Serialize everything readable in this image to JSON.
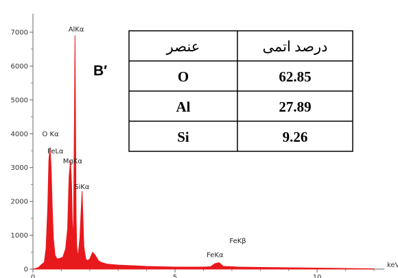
{
  "panel_label": "B′",
  "chart_data": {
    "type": "line",
    "xlabel": "keV",
    "ylabel": "",
    "xlim": [
      0,
      12
    ],
    "ylim": [
      0,
      7500
    ],
    "y_ticks": [
      0,
      1000,
      2000,
      3000,
      4000,
      5000,
      6000,
      7000
    ],
    "y_tick_labels": [
      "0",
      "1000",
      "2000",
      "3000",
      "4000",
      "5000",
      "6000",
      "7000"
    ],
    "x_ticks": [
      0,
      5,
      10
    ],
    "x_tick_labels": [
      "0",
      "5",
      "10"
    ],
    "series_color": "#e8191d",
    "spectrum": {
      "x": [
        0.0,
        0.1,
        0.2,
        0.28,
        0.4,
        0.46,
        0.52,
        0.56,
        0.6,
        0.64,
        0.68,
        0.72,
        0.78,
        0.85,
        0.95,
        1.05,
        1.15,
        1.22,
        1.27,
        1.32,
        1.36,
        1.4,
        1.43,
        1.46,
        1.48,
        1.5,
        1.52,
        1.54,
        1.57,
        1.6,
        1.65,
        1.7,
        1.73,
        1.76,
        1.79,
        1.82,
        1.86,
        1.92,
        2.0,
        2.1,
        2.2,
        2.3,
        2.4,
        2.6,
        3.0,
        3.5,
        4.0,
        5.0,
        6.0,
        6.25,
        6.4,
        6.55,
        6.7,
        7.05,
        7.2,
        8.0,
        9.0,
        10.0,
        11.0,
        12.0
      ],
      "y": [
        0,
        20,
        50,
        120,
        200,
        600,
        1800,
        3200,
        3600,
        3000,
        1800,
        900,
        400,
        300,
        320,
        350,
        600,
        1200,
        2700,
        3200,
        2500,
        800,
        1500,
        4500,
        6900,
        4200,
        1500,
        700,
        400,
        500,
        900,
        1800,
        2300,
        1500,
        700,
        500,
        300,
        250,
        300,
        500,
        400,
        250,
        200,
        150,
        120,
        100,
        80,
        60,
        60,
        70,
        160,
        190,
        80,
        70,
        60,
        50,
        40,
        30,
        20,
        10
      ]
    },
    "peaks": [
      {
        "label": "AlKα",
        "x": 1.49,
        "y": 6900
      },
      {
        "label": "O Kα",
        "x": 0.52,
        "y": 3800
      },
      {
        "label": "FeLα",
        "x": 0.7,
        "y": 3300
      },
      {
        "label": "MgKα",
        "x": 1.25,
        "y": 3000
      },
      {
        "label": "SiKα",
        "x": 1.74,
        "y": 2250
      },
      {
        "label": "FeKβ",
        "x": 7.06,
        "y": 450
      },
      {
        "label": "FeKα",
        "x": 6.4,
        "y": 190
      }
    ]
  },
  "table": {
    "headers": [
      "عنصر",
      "درصد اتمی"
    ],
    "rows": [
      {
        "element": "O",
        "value": "62.85"
      },
      {
        "element": "Al",
        "value": "27.89"
      },
      {
        "element": "Si",
        "value": "9.26"
      }
    ]
  }
}
